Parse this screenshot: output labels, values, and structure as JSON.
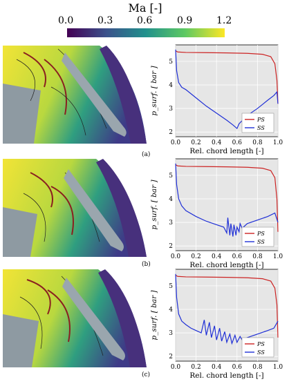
{
  "colorbar": {
    "title": "Ma [-]",
    "ticks": [
      "0.0",
      "0.3",
      "0.6",
      "0.9",
      "1.2"
    ]
  },
  "panels": [
    {
      "label": "(a)"
    },
    {
      "label": "(b)"
    },
    {
      "label": "(c)"
    }
  ],
  "chart_data": [
    {
      "type": "line",
      "xlabel": "Rel. chord length [-]",
      "ylabel": "p_surf. [ bar ]",
      "xlim": [
        0,
        1
      ],
      "ylim": [
        1.8,
        5.7
      ],
      "xticks": [
        "0.0",
        "0.2",
        "0.4",
        "0.6",
        "0.8",
        "1.0"
      ],
      "yticks": [
        "2",
        "3",
        "4",
        "5"
      ],
      "legend": "bottom-right",
      "grid": true,
      "series": [
        {
          "name": "PS",
          "color": "#cc2222",
          "x": [
            0,
            0.02,
            0.1,
            0.3,
            0.5,
            0.7,
            0.85,
            0.93,
            0.97,
            0.99,
            1.0
          ],
          "y": [
            5.45,
            5.4,
            5.38,
            5.37,
            5.36,
            5.34,
            5.3,
            5.2,
            4.9,
            4.2,
            3.2
          ]
        },
        {
          "name": "SS",
          "color": "#1f2fd6",
          "x": [
            0,
            0.01,
            0.03,
            0.06,
            0.1,
            0.2,
            0.3,
            0.4,
            0.5,
            0.56,
            0.6,
            0.62,
            0.7,
            0.8,
            0.9,
            0.96,
            0.99,
            1.0
          ],
          "y": [
            5.5,
            4.6,
            4.1,
            3.9,
            3.8,
            3.45,
            3.1,
            2.8,
            2.5,
            2.3,
            2.15,
            2.35,
            2.7,
            3.0,
            3.35,
            3.55,
            3.7,
            3.2
          ]
        }
      ]
    },
    {
      "type": "line",
      "xlabel": "Rel. chord length [-]",
      "ylabel": "p_surf. [ bar ]",
      "xlim": [
        0,
        1
      ],
      "ylim": [
        1.8,
        5.7
      ],
      "xticks": [
        "0.0",
        "0.2",
        "0.4",
        "0.6",
        "0.8",
        "1.0"
      ],
      "yticks": [
        "2",
        "3",
        "4",
        "5"
      ],
      "legend": "bottom-right",
      "grid": true,
      "series": [
        {
          "name": "PS",
          "color": "#cc2222",
          "x": [
            0,
            0.02,
            0.1,
            0.3,
            0.5,
            0.7,
            0.85,
            0.93,
            0.97,
            0.99,
            1.0
          ],
          "y": [
            5.45,
            5.4,
            5.38,
            5.37,
            5.36,
            5.34,
            5.3,
            5.2,
            4.9,
            4.0,
            2.6
          ]
        },
        {
          "name": "SS",
          "color": "#1f2fd6",
          "x": [
            0,
            0.01,
            0.03,
            0.06,
            0.1,
            0.2,
            0.3,
            0.4,
            0.47,
            0.5,
            0.51,
            0.53,
            0.54,
            0.56,
            0.57,
            0.59,
            0.6,
            0.62,
            0.63,
            0.65,
            0.7,
            0.8,
            0.9,
            0.97,
            1.0
          ],
          "y": [
            5.5,
            4.6,
            4.0,
            3.7,
            3.5,
            3.25,
            3.05,
            2.9,
            2.8,
            2.55,
            3.2,
            2.45,
            2.95,
            2.4,
            2.9,
            2.45,
            2.8,
            2.6,
            2.95,
            2.75,
            2.95,
            3.1,
            3.25,
            3.4,
            3.0
          ]
        }
      ]
    },
    {
      "type": "line",
      "xlabel": "Rel. chord length [-]",
      "ylabel": "p_surf. [ bar ]",
      "xlim": [
        0,
        1
      ],
      "ylim": [
        1.8,
        5.7
      ],
      "xticks": [
        "0.0",
        "0.2",
        "0.4",
        "0.6",
        "0.8",
        "1.0"
      ],
      "yticks": [
        "2",
        "3",
        "4",
        "5"
      ],
      "legend": "bottom-right",
      "grid": true,
      "series": [
        {
          "name": "PS",
          "color": "#cc2222",
          "x": [
            0,
            0.02,
            0.1,
            0.3,
            0.5,
            0.7,
            0.85,
            0.93,
            0.97,
            0.99,
            1.0
          ],
          "y": [
            5.45,
            5.4,
            5.38,
            5.37,
            5.36,
            5.34,
            5.3,
            5.2,
            4.9,
            4.2,
            2.8
          ]
        },
        {
          "name": "SS",
          "color": "#1f2fd6",
          "x": [
            0,
            0.01,
            0.03,
            0.06,
            0.1,
            0.15,
            0.2,
            0.25,
            0.28,
            0.3,
            0.33,
            0.35,
            0.38,
            0.4,
            0.43,
            0.45,
            0.48,
            0.5,
            0.53,
            0.55,
            0.58,
            0.6,
            0.63,
            0.65,
            0.7,
            0.8,
            0.9,
            0.96,
            1.0
          ],
          "y": [
            5.5,
            4.5,
            3.8,
            3.5,
            3.35,
            3.2,
            3.1,
            3.0,
            3.55,
            2.9,
            3.45,
            2.8,
            3.3,
            2.7,
            3.2,
            2.65,
            3.05,
            2.6,
            2.95,
            2.55,
            2.9,
            2.6,
            2.85,
            2.7,
            2.8,
            2.95,
            3.1,
            3.2,
            3.5
          ]
        }
      ]
    }
  ]
}
